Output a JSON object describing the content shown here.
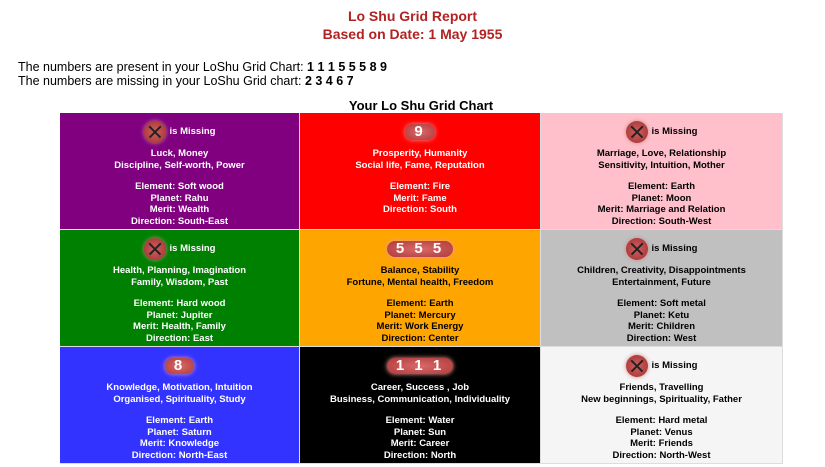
{
  "header": {
    "title": "Lo Shu Grid Report",
    "subtitle": "Based on Date: 1 May 1955"
  },
  "present": {
    "label": "The numbers are present in your LoShu Grid Chart:",
    "value": "1 1 1 5 5 5 8 9"
  },
  "missing": {
    "label": "The numbers are missing in your LoShu Grid chart:",
    "value": "2 3 4 6 7"
  },
  "chart_title": "Your Lo Shu Grid Chart",
  "cells": [
    {
      "bg": "#800080",
      "fg": "#ffffff",
      "number": "",
      "missing": "is Missing",
      "l1": "Luck, Money",
      "l2": "Discipline, Self-worth, Power",
      "element": "Element: Soft wood",
      "planet": "Planet: Rahu",
      "merit": "Merit: Wealth",
      "direction": "Direction: South-East"
    },
    {
      "bg": "#ff0000",
      "fg": "#ffffff",
      "number": "9",
      "missing": "",
      "l1": "Prosperity, Humanity",
      "l2": "Social life, Fame, Reputation",
      "element": "Element: Fire",
      "planet": "",
      "merit": "Merit: Fame",
      "direction": "Direction: South"
    },
    {
      "bg": "#ffc0cb",
      "fg": "#000000",
      "number": "",
      "missing": "is Missing",
      "l1": "Marriage, Love, Relationship",
      "l2": "Sensitivity, Intuition, Mother",
      "element": "Element: Earth",
      "planet": "Planet: Moon",
      "merit": "Merit: Marriage and Relation",
      "direction": "Direction: South-West"
    },
    {
      "bg": "#008000",
      "fg": "#ffffff",
      "number": "",
      "missing": "is Missing",
      "l1": "Health, Planning, Imagination",
      "l2": "Family, Wisdom, Past",
      "element": "Element: Hard wood",
      "planet": "Planet: Jupiter",
      "merit": "Merit: Health, Family",
      "direction": "Direction: East"
    },
    {
      "bg": "#ffa500",
      "fg": "#000000",
      "number": "5 5 5",
      "missing": "",
      "l1": "Balance, Stability",
      "l2": "Fortune, Mental health, Freedom",
      "element": "Element: Earth",
      "planet": "Planet: Mercury",
      "merit": "Merit: Work Energy",
      "direction": "Direction: Center"
    },
    {
      "bg": "#c0c0c0",
      "fg": "#000000",
      "number": "",
      "missing": "is Missing",
      "l1": "Children, Creativity, Disappointments",
      "l2": "Entertainment, Future",
      "element": "Element: Soft metal",
      "planet": "Planet: Ketu",
      "merit": "Merit: Children",
      "direction": "Direction: West"
    },
    {
      "bg": "#3333ff",
      "fg": "#ffffff",
      "number": "8",
      "missing": "",
      "l1": "Knowledge, Motivation, Intuition",
      "l2": "Organised, Spirituality, Study",
      "element": "Element: Earth",
      "planet": "Planet: Saturn",
      "merit": "Merit: Knowledge",
      "direction": "Direction: North-East"
    },
    {
      "bg": "#000000",
      "fg": "#ffffff",
      "number": "1 1 1",
      "missing": "",
      "l1": "Career, Success , Job",
      "l2": "Business, Communication, Individuality",
      "element": "Element: Water",
      "planet": "Planet: Sun",
      "merit": "Merit: Career",
      "direction": "Direction: North"
    },
    {
      "bg": "#f5f5f5",
      "fg": "#000000",
      "number": "",
      "missing": "is Missing",
      "l1": "Friends, Travelling",
      "l2": "New beginnings, Spirituality, Father",
      "element": "Element: Hard metal",
      "planet": "Planet: Venus",
      "merit": "Merit: Friends",
      "direction": "Direction: North-West"
    }
  ]
}
